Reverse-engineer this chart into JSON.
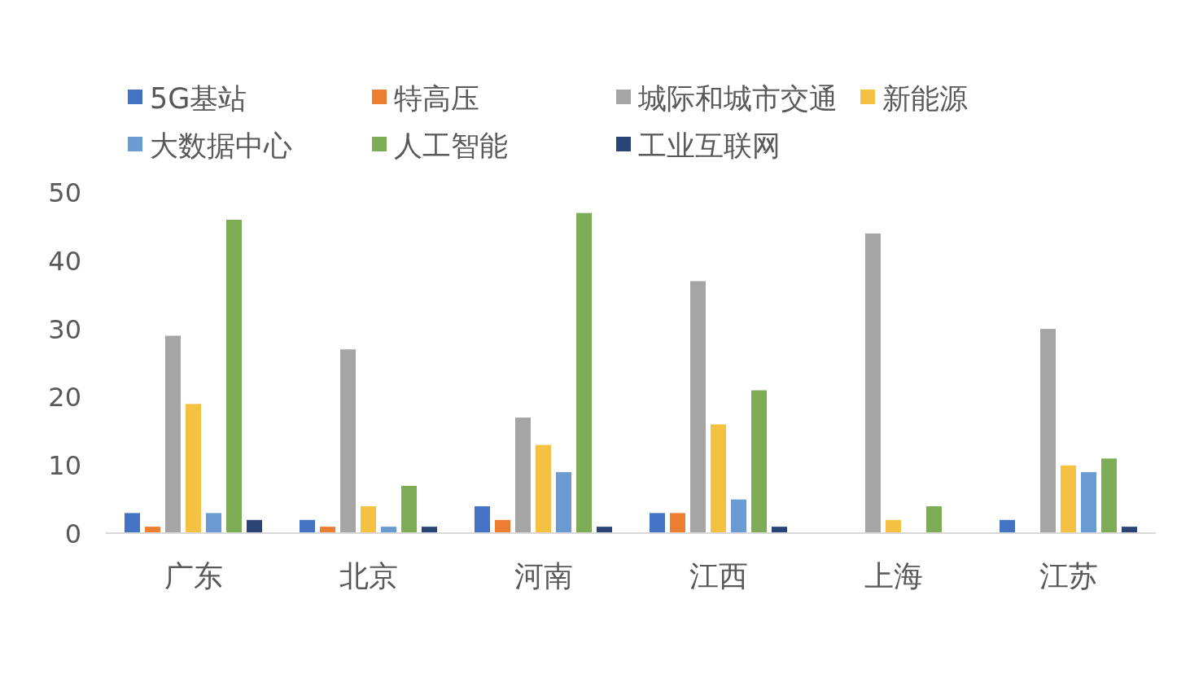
{
  "chart_data": {
    "type": "bar",
    "categories": [
      "广东",
      "北京",
      "河南",
      "江西",
      "上海",
      "江苏"
    ],
    "series": [
      {
        "name": "5G基站",
        "color": "#4472c4",
        "values": [
          3,
          2,
          4,
          3,
          null,
          2
        ]
      },
      {
        "name": "特高压",
        "color": "#ed7d31",
        "values": [
          1,
          1,
          2,
          3,
          null,
          null
        ]
      },
      {
        "name": "城际和城市交通",
        "color": "#a5a5a5",
        "values": [
          29,
          27,
          17,
          37,
          44,
          30
        ]
      },
      {
        "name": "新能源",
        "color": "#f4c142",
        "values": [
          19,
          4,
          13,
          16,
          2,
          10
        ]
      },
      {
        "name": "大数据中心",
        "color": "#6a9bd2",
        "values": [
          3,
          1,
          9,
          5,
          null,
          9
        ]
      },
      {
        "name": "人工智能",
        "color": "#7eab55",
        "values": [
          46,
          7,
          47,
          21,
          4,
          11
        ]
      },
      {
        "name": "工业互联网",
        "color": "#2a4476",
        "values": [
          2,
          1,
          1,
          1,
          null,
          1
        ]
      }
    ],
    "ylim": [
      0,
      50
    ],
    "yticks": [
      0,
      10,
      20,
      30,
      40,
      50
    ],
    "legend": "top left"
  }
}
